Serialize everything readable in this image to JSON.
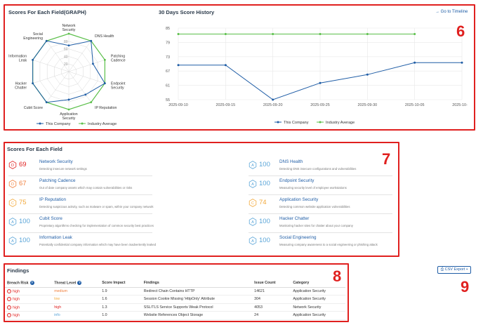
{
  "radar_panel": {
    "title": "Scores For Each Field(GRAPH)",
    "legend": [
      "This Company",
      "Industry Average"
    ]
  },
  "history_panel": {
    "title": "30 Days Score History",
    "timeline_link": "→ Go to Timeline",
    "legend": [
      "This Company",
      "Industry Average"
    ]
  },
  "colors": {
    "company": "#1f5da6",
    "industry": "#5bbf4a",
    "red": "#e0201f",
    "orange": "#f07f3c",
    "amber": "#f2a93b",
    "blue_badge": "#5aa5d8"
  },
  "chart_data": [
    {
      "type": "radar",
      "categories": [
        "Network Security",
        "DNS Health",
        "Patching Cadence",
        "Endpoint Security",
        "IP Reputation",
        "Application Security",
        "Cubit Score",
        "Hacker Chatter",
        "Information Leak",
        "Social Engineering"
      ],
      "category_labels": [
        [
          "Network",
          "Security"
        ],
        [
          "DNS Health"
        ],
        [
          "Patching",
          "Cadence"
        ],
        [
          "Endpoint",
          "Security"
        ],
        [
          "IP Reputation"
        ],
        [
          "Application",
          "Security"
        ],
        [
          "Cubit Score"
        ],
        [
          "Hacker",
          "Chatter"
        ],
        [
          "Information",
          "Leak"
        ],
        [
          "Social",
          "Engineering"
        ]
      ],
      "r_ticks": [
        "20",
        "40",
        "60",
        "80"
      ],
      "rlim": [
        0,
        100
      ],
      "series": [
        {
          "name": "This Company",
          "values": [
            69,
            100,
            67,
            100,
            75,
            74,
            100,
            100,
            100,
            100
          ]
        },
        {
          "name": "Industry Average",
          "values": [
            100,
            100,
            100,
            100,
            100,
            100,
            100,
            100,
            100,
            100
          ]
        }
      ]
    },
    {
      "type": "line",
      "x": [
        "2025-09-10",
        "2025-09-15",
        "2025-09-20",
        "2025-09-25",
        "2025-09-30",
        "2025-10-05",
        "2025-10-10"
      ],
      "x_ticks": [
        "2025-09-10",
        "2025-09-15",
        "2025-09-20",
        "2025-09-25",
        "2025-09-30",
        "2025-10-05",
        "2025-10-10"
      ],
      "y_ticks": [
        "85",
        "79",
        "73",
        "67",
        "61",
        "55"
      ],
      "ylim": [
        55,
        85
      ],
      "grid": true,
      "legend_position": "bottom",
      "series": [
        {
          "name": "This Company",
          "values": [
            [
              0,
              69.5
            ],
            [
              5,
              69.5
            ],
            [
              10,
              55
            ],
            [
              15,
              62
            ],
            [
              20,
              65.5
            ],
            [
              25,
              70.5
            ],
            [
              30,
              70.5
            ]
          ]
        },
        {
          "name": "Industry Average",
          "values": [
            [
              0,
              82.5
            ],
            [
              5,
              82.5
            ],
            [
              10,
              82.5
            ],
            [
              15,
              82.5
            ],
            [
              20,
              82.5
            ],
            [
              25,
              82.5
            ]
          ]
        }
      ]
    }
  ],
  "scores_panel": {
    "title": "Scores For Each Field",
    "items": [
      {
        "score": "69",
        "name": "Network Security",
        "desc": "Detecting insecure network settings",
        "level": "red"
      },
      {
        "score": "100",
        "name": "DNS Health",
        "desc": "Detecting DNS insecure configurations and vulnerabilities",
        "level": "blue"
      },
      {
        "score": "67",
        "name": "Patching Cadence",
        "desc": "Out of date company assets which may contain vulnerabilities or risks",
        "level": "orange"
      },
      {
        "score": "100",
        "name": "Endpoint Security",
        "desc": "Measuring security level of employee workstations",
        "level": "blue"
      },
      {
        "score": "75",
        "name": "IP Reputation",
        "desc": "Detecting suspicious activity, such as malware or spam, within your company network",
        "level": "amber"
      },
      {
        "score": "74",
        "name": "Application Security",
        "desc": "Detecting common website application vulnerabilities",
        "level": "amber"
      },
      {
        "score": "100",
        "name": "Cubit Score",
        "desc": "Proprietary algorithms checking for implementation of common security best practices",
        "level": "blue"
      },
      {
        "score": "100",
        "name": "Hacker Chatter",
        "desc": "Monitoring hacker sites for chatter about your company",
        "level": "blue"
      },
      {
        "score": "100",
        "name": "Information Leak",
        "desc": "Potentially confidential company information which may have been inadvertently leaked",
        "level": "blue"
      },
      {
        "score": "100",
        "name": "Social Engineering",
        "desc": "Measuring company awareness to a social engineering or phishing attack",
        "level": "blue"
      }
    ]
  },
  "findings": {
    "title": "Findings",
    "csv_button": "CSV Export",
    "columns": [
      "Breach Risk",
      "Threat Level",
      "Score Impact",
      "Findings",
      "Issue Count",
      "Category"
    ],
    "rows": [
      {
        "risk": "high",
        "threat": "medium",
        "threat_level": "orange",
        "impact": "1.9",
        "finding": "Redirect Chain Contains HTTP",
        "count": "14621",
        "category": "Application Security"
      },
      {
        "risk": "high",
        "threat": "low",
        "threat_level": "amber",
        "impact": "1.6",
        "finding": "Session Cookie Missing 'HttpOnly' Attribute",
        "count": "304",
        "category": "Application Security"
      },
      {
        "risk": "high",
        "threat": "high",
        "threat_level": "red",
        "impact": "1.3",
        "finding": "SSL/TLS Service Supports Weak Protocol",
        "count": "4053",
        "category": "Network Security"
      },
      {
        "risk": "high",
        "threat": "info",
        "threat_level": "blue",
        "impact": "1.0",
        "finding": "Website References Object Storage",
        "count": "24",
        "category": "Application Security"
      }
    ]
  },
  "annotations": [
    "6",
    "7",
    "8",
    "9"
  ]
}
